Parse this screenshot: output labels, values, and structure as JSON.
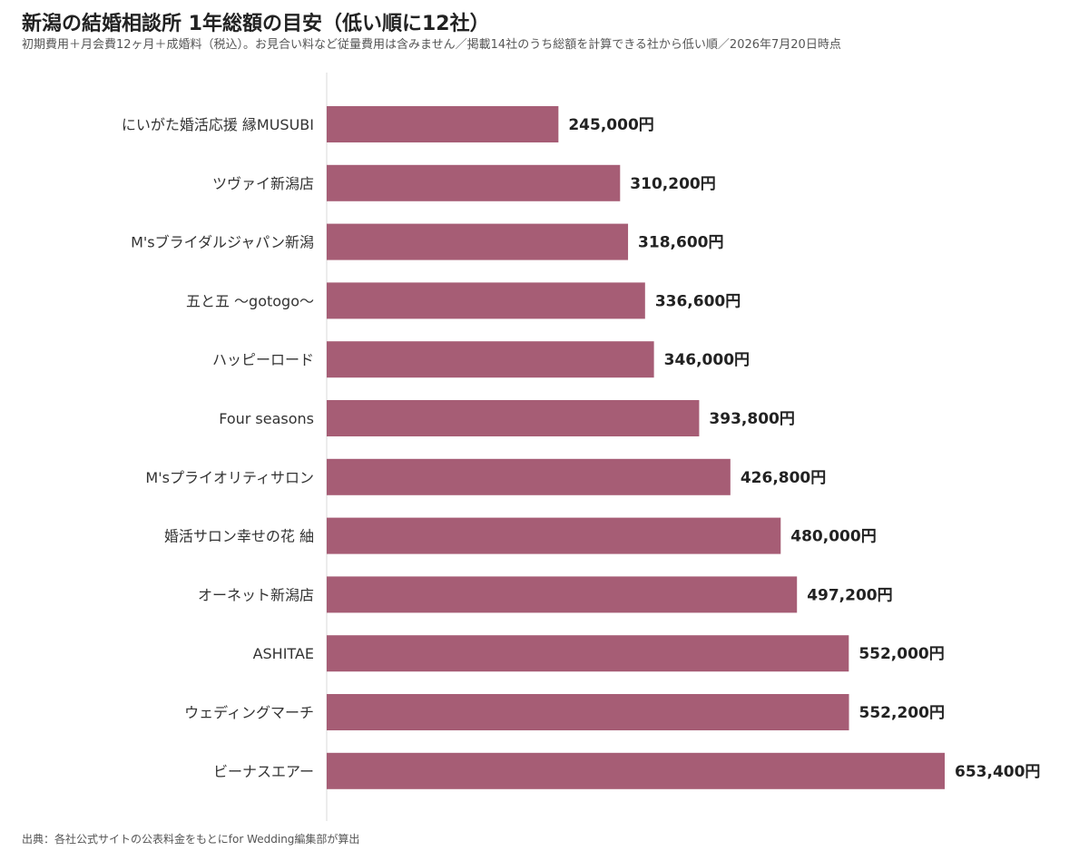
{
  "header": {
    "title": "新潟の結婚相談所 1年総額の目安（低い順に12社）",
    "subtitle": "初期費用＋月会費12ヶ月＋成婚料（税込）。お見合い料など従量費用は含みません／掲載14社のうち総額を計算できる社から低い順／2026年7月20日時点"
  },
  "footer": {
    "source": "出典：各社公式サイトの公表料金をもとにfor Wedding編集部が算出"
  },
  "colors": {
    "bar": "#a65d75",
    "axis": "#d9d9d9"
  },
  "chart_data": {
    "type": "bar",
    "orientation": "horizontal",
    "title": "新潟の結婚相談所 1年総額の目安（低い順に12社）",
    "value_suffix": "円",
    "categories": [
      "にいがた婚活応援 縁MUSUBI",
      "ツヴァイ新潟店",
      "M'sブライダルジャパン新潟",
      "五と五 〜gotogo〜",
      "ハッピーロード",
      "Four seasons",
      "M'sプライオリティサロン",
      "婚活サロン幸せの花 紬",
      "オーネット新潟店",
      "ASHITAE",
      "ウェディングマーチ",
      "ビーナスエアー"
    ],
    "values": [
      245000,
      310200,
      318600,
      336600,
      346000,
      393800,
      426800,
      480000,
      497200,
      552000,
      552200,
      653400
    ],
    "value_labels": [
      "245,000円",
      "310,200円",
      "318,600円",
      "336,600円",
      "346,000円",
      "393,800円",
      "426,800円",
      "480,000円",
      "497,200円",
      "552,000円",
      "552,200円",
      "653,400円"
    ],
    "xlim": [
      0,
      653400
    ],
    "grid": false,
    "legend": "none"
  }
}
